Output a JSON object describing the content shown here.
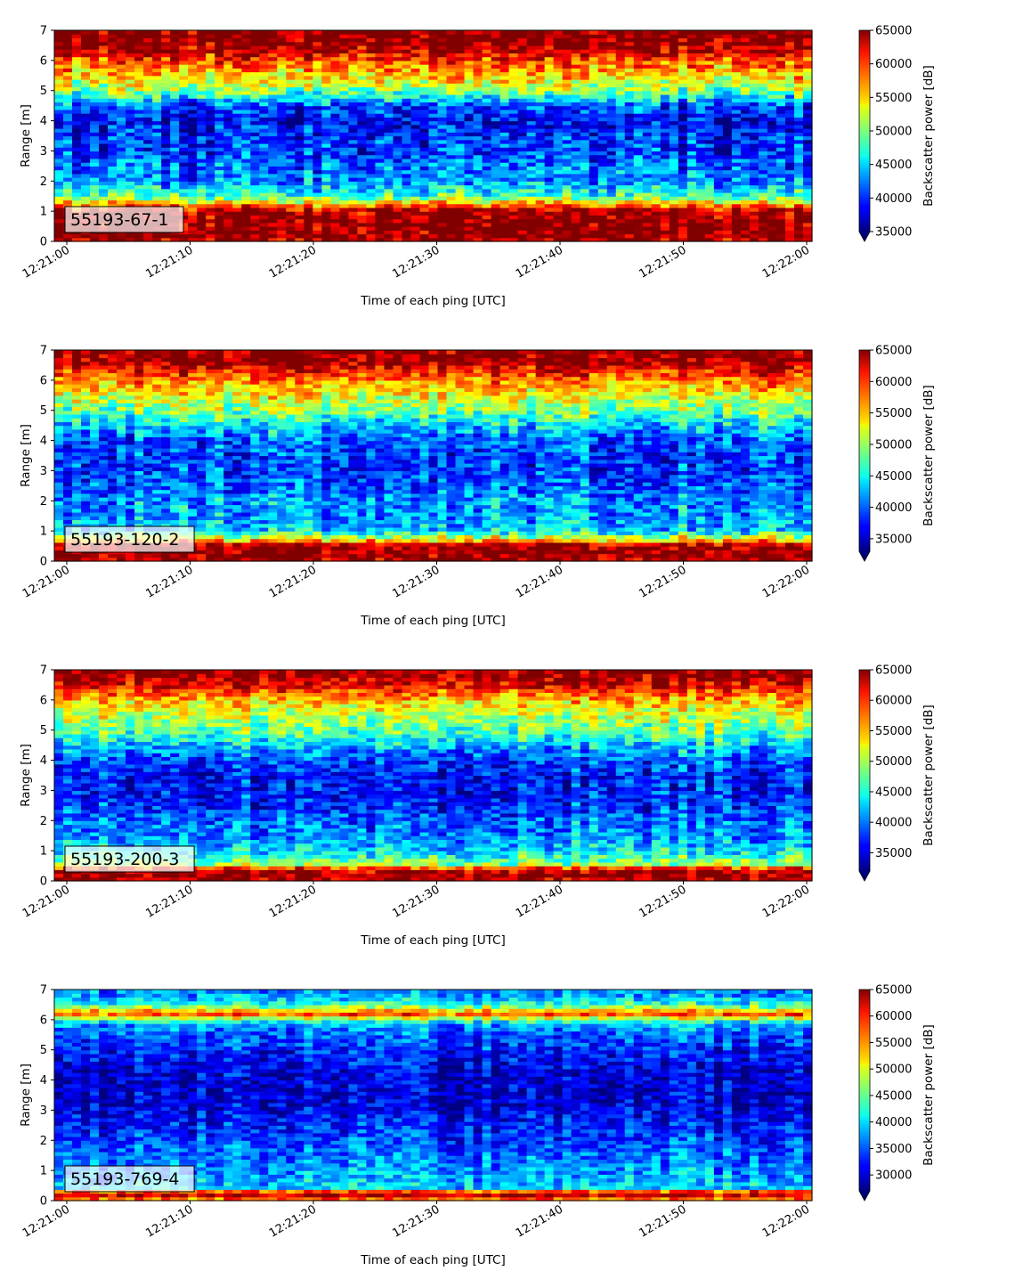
{
  "chart_data": [
    {
      "type": "heatmap",
      "label": "55193-67-1",
      "xlabel": "Time of each ping [UTC]",
      "ylabel": "Range [m]",
      "xlim": [
        "12:21:00",
        "12:22:00"
      ],
      "ylim": [
        0,
        7
      ],
      "x_ticks": [
        "12:21:00",
        "12:21:10",
        "12:21:20",
        "12:21:30",
        "12:21:40",
        "12:21:50",
        "12:22:00"
      ],
      "y_ticks": [
        0,
        1,
        2,
        3,
        4,
        5,
        6,
        7
      ],
      "colorbar": {
        "label": "Backscatter power [dB]",
        "vmin": 35000,
        "vmax": 65000,
        "extend": "min",
        "ticks": [
          35000,
          40000,
          45000,
          50000,
          55000,
          60000,
          65000
        ],
        "colormap": "jet"
      },
      "profile_range_m": [
        0.0,
        0.25,
        0.75,
        1.05,
        1.2,
        1.5,
        2.0,
        2.5,
        3.0,
        3.5,
        4.0,
        4.5,
        5.0,
        5.5,
        6.0,
        6.3,
        6.6,
        7.0
      ],
      "profile_power": [
        63500,
        65000,
        65000,
        63000,
        58000,
        48000,
        43000,
        42000,
        40000,
        40000,
        38000,
        41000,
        50000,
        55000,
        59000,
        63000,
        65000,
        65000
      ]
    },
    {
      "type": "heatmap",
      "label": "55193-120-2",
      "xlabel": "Time of each ping [UTC]",
      "ylabel": "Range [m]",
      "xlim": [
        "12:21:00",
        "12:22:00"
      ],
      "ylim": [
        0,
        7
      ],
      "x_ticks": [
        "12:21:00",
        "12:21:10",
        "12:21:20",
        "12:21:30",
        "12:21:40",
        "12:21:50",
        "12:22:00"
      ],
      "y_ticks": [
        0,
        1,
        2,
        3,
        4,
        5,
        6,
        7
      ],
      "colorbar": {
        "label": "Backscatter power [dB]",
        "vmin": 33000,
        "vmax": 65000,
        "extend": "min",
        "ticks": [
          35000,
          40000,
          45000,
          50000,
          55000,
          60000,
          65000
        ],
        "colormap": "jet"
      },
      "profile_range_m": [
        0.0,
        0.25,
        0.55,
        0.7,
        1.0,
        1.5,
        2.0,
        2.5,
        3.0,
        3.5,
        4.0,
        4.5,
        5.0,
        5.5,
        6.0,
        6.4,
        6.7,
        7.0
      ],
      "profile_power": [
        64000,
        65000,
        64000,
        55000,
        44000,
        42000,
        42000,
        40000,
        39000,
        39000,
        40000,
        44000,
        49000,
        53000,
        57000,
        62000,
        65000,
        65000
      ]
    },
    {
      "type": "heatmap",
      "label": "55193-200-3",
      "xlabel": "Time of each ping [UTC]",
      "ylabel": "Range [m]",
      "xlim": [
        "12:21:00",
        "12:22:00"
      ],
      "ylim": [
        0,
        7
      ],
      "x_ticks": [
        "12:21:00",
        "12:21:10",
        "12:21:20",
        "12:21:30",
        "12:21:40",
        "12:21:50",
        "12:22:00"
      ],
      "y_ticks": [
        0,
        1,
        2,
        3,
        4,
        5,
        6,
        7
      ],
      "colorbar": {
        "label": "Backscatter power [dB]",
        "vmin": 32000,
        "vmax": 65000,
        "extend": "min",
        "ticks": [
          35000,
          40000,
          45000,
          50000,
          55000,
          60000,
          65000
        ],
        "colormap": "jet"
      },
      "profile_range_m": [
        0.0,
        0.2,
        0.4,
        0.55,
        1.0,
        1.5,
        2.0,
        2.5,
        3.0,
        3.5,
        4.0,
        4.5,
        5.0,
        5.5,
        6.0,
        6.4,
        6.7,
        7.0
      ],
      "profile_power": [
        64000,
        65000,
        63000,
        50000,
        44000,
        41000,
        40000,
        38000,
        37000,
        37000,
        39000,
        43000,
        48000,
        51000,
        55000,
        61000,
        64000,
        65000
      ]
    },
    {
      "type": "heatmap",
      "label": "55193-769-4",
      "xlabel": "Time of each ping [UTC]",
      "ylabel": "Range [m]",
      "xlim": [
        "12:21:00",
        "12:22:00"
      ],
      "ylim": [
        0,
        7
      ],
      "x_ticks": [
        "12:21:00",
        "12:21:10",
        "12:21:20",
        "12:21:30",
        "12:21:40",
        "12:21:50",
        "12:22:00"
      ],
      "y_ticks": [
        0,
        1,
        2,
        3,
        4,
        5,
        6,
        7
      ],
      "colorbar": {
        "label": "Backscatter power [dB]",
        "vmin": 27000,
        "vmax": 65000,
        "extend": "min",
        "ticks": [
          30000,
          35000,
          40000,
          45000,
          50000,
          55000,
          60000,
          65000
        ],
        "colormap": "jet"
      },
      "profile_range_m": [
        0.0,
        0.15,
        0.3,
        0.4,
        0.8,
        1.5,
        2.0,
        2.5,
        3.0,
        3.5,
        4.0,
        4.5,
        5.0,
        5.5,
        5.9,
        6.2,
        6.5,
        6.8,
        7.0
      ],
      "profile_power": [
        52000,
        63000,
        60000,
        40000,
        38000,
        36000,
        34000,
        33000,
        31000,
        30000,
        30000,
        31000,
        33000,
        35000,
        39000,
        58000,
        43000,
        38000,
        37000
      ]
    }
  ]
}
